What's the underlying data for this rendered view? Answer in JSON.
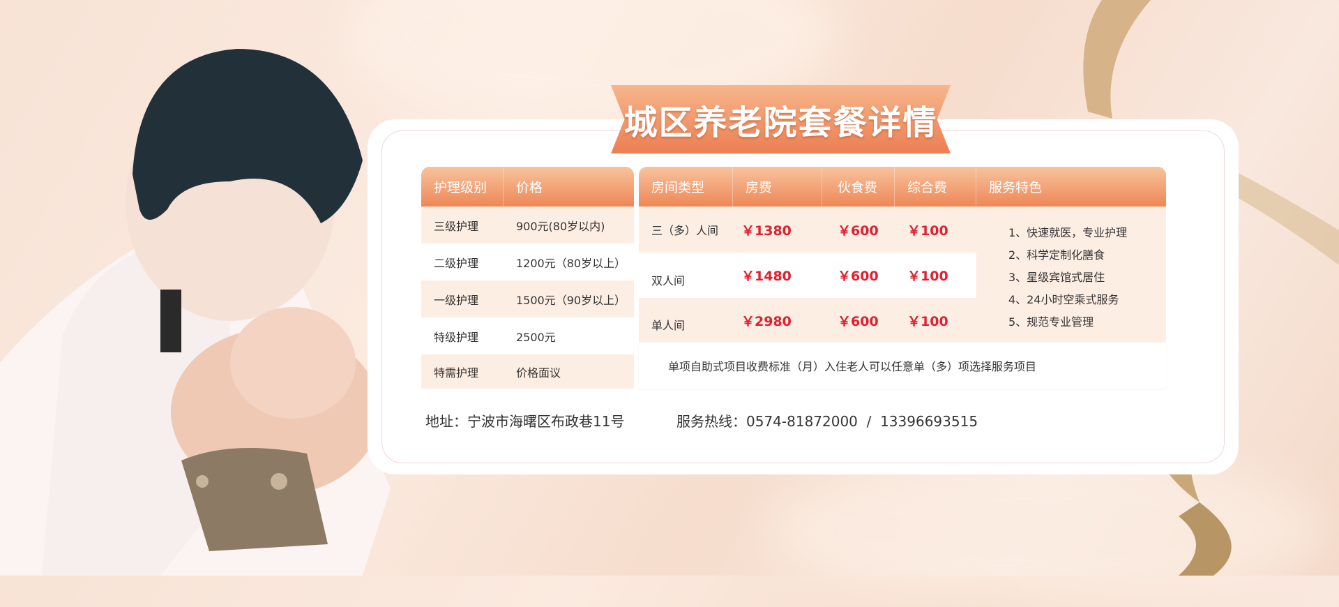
{
  "title": "城区养老院套餐详情",
  "care_table": {
    "headers": [
      "护理级别",
      "价格"
    ],
    "rows": [
      {
        "level": "三级护理",
        "price": "900元(80岁以内)"
      },
      {
        "level": "二级护理",
        "price": "1200元（80岁以上）"
      },
      {
        "level": "一级护理",
        "price": "1500元（90岁以上）"
      },
      {
        "level": "特级护理",
        "price": "2500元"
      },
      {
        "level": "特需护理",
        "price": "价格面议"
      }
    ]
  },
  "room_table": {
    "headers": [
      "房间类型",
      "房费",
      "伙食费",
      "综合费",
      "服务特色"
    ],
    "rows": [
      {
        "type": "三（多）人间",
        "room": "￥1380",
        "food": "￥600",
        "general": "￥100"
      },
      {
        "type": "双人间",
        "room": "￥1480",
        "food": "￥600",
        "general": "￥100"
      },
      {
        "type": "单人间",
        "room": "￥2980",
        "food": "￥600",
        "general": "￥100"
      }
    ],
    "features": [
      "1、快速就医，专业护理",
      "2、科学定制化膳食",
      "3、星级宾馆式居住",
      "4、24小时空乘式服务",
      "5、规范专业管理"
    ],
    "note": "单项自助式项目收费标准（月）入住老人可以任意单（多）项选择服务项目"
  },
  "footer": {
    "address": "地址：宁波市海曙区布政巷11号",
    "hotline": "服务热线：0574-81872000  /  13396693515"
  },
  "colors": {
    "accent": "#ee8756",
    "price": "#e02030",
    "ribbon": "#c9a777"
  }
}
